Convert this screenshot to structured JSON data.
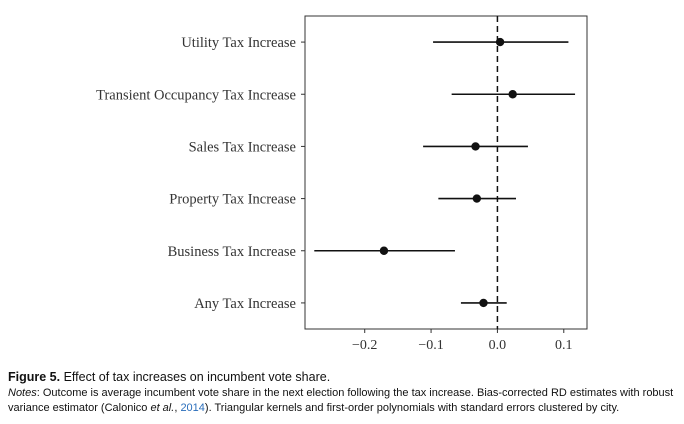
{
  "chart_data": {
    "type": "scatter",
    "subtype": "coefficient-plot",
    "orientation": "horizontal",
    "categories": [
      "Utility Tax Increase",
      "Transient Occupancy Tax Increase",
      "Sales Tax Increase",
      "Property Tax Increase",
      "Business Tax Increase",
      "Any Tax Increase"
    ],
    "estimates": [
      0.004,
      0.023,
      -0.033,
      -0.031,
      -0.171,
      -0.021
    ],
    "ci_low": [
      -0.097,
      -0.069,
      -0.112,
      -0.089,
      -0.276,
      -0.055
    ],
    "ci_high": [
      0.107,
      0.117,
      0.046,
      0.028,
      -0.064,
      0.014
    ],
    "xlim": [
      -0.29,
      0.135
    ],
    "xticks": [
      -0.2,
      -0.1,
      0.0,
      0.1
    ],
    "xtick_labels": [
      "−0.2",
      "−0.1",
      "0.0",
      "0.1"
    ],
    "reference_line": {
      "x": 0,
      "style": "dashed"
    },
    "grid": false,
    "colors": {
      "marks": "#111111",
      "axis": "#333333",
      "text": "#333333"
    }
  },
  "caption": {
    "figure_label": "Figure 5.",
    "figure_title": "Effect of tax increases on incumbent vote share.",
    "notes_label": "Notes",
    "notes_text_1": ": Outcome is average incumbent vote share in the next election following the tax increase. Bias-corrected RD estimates with robust variance estimator (Calonico ",
    "notes_etal": "et al.",
    "notes_text_2": ", ",
    "notes_year": "2014",
    "notes_text_3": "). Triangular kernels and first-order polynomials with standard errors clustered by city."
  }
}
